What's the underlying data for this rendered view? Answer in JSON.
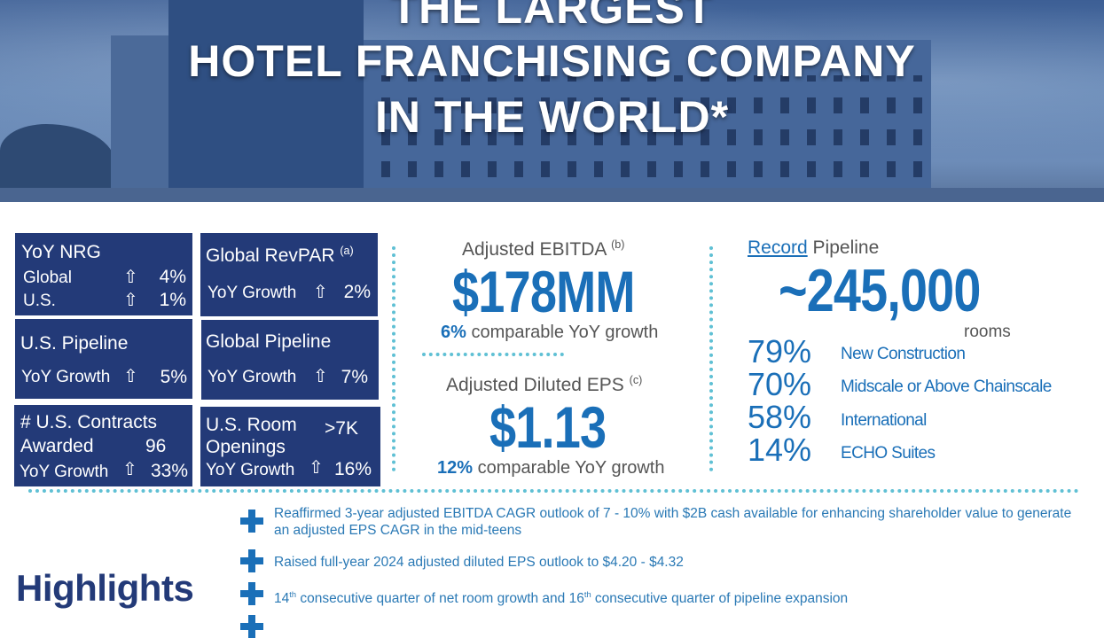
{
  "banner": {
    "lines": [
      "THE LARGEST",
      "HOTEL FRANCHISING COMPANY",
      "IN THE WORLD*"
    ]
  },
  "colors": {
    "navy": "#233a78",
    "blue": "#1a6fb8",
    "dots": "#5fc0d4"
  },
  "boxes": {
    "nrg": {
      "title": "YoY NRG",
      "global_label": "Global",
      "global_value": "4%",
      "us_label": "U.S.",
      "us_value": "1%"
    },
    "revpar": {
      "title": "Global RevPAR",
      "note": "(a)",
      "label": "YoY Growth",
      "value": "2%"
    },
    "us_pipeline": {
      "title": "U.S. Pipeline",
      "label": "YoY Growth",
      "value": "5%"
    },
    "global_pipeline": {
      "title": "Global Pipeline",
      "label": "YoY Growth",
      "value": "7%"
    },
    "contracts": {
      "title1": "# U.S. Contracts",
      "title2": "Awarded",
      "count": "96",
      "label": "YoY Growth",
      "value": "33%"
    },
    "openings": {
      "title1": "U.S. Room",
      "title2": "Openings",
      "count": ">7K",
      "label": "YoY Growth",
      "value": "16%"
    }
  },
  "arrow_icon": "⇧",
  "ebitda": {
    "label": "Adjusted EBITDA",
    "note": "(b)",
    "value": "$178MM",
    "growth_pct": "6%",
    "growth_text": "comparable YoY growth"
  },
  "eps": {
    "label": "Adjusted Diluted EPS",
    "note": "(c)",
    "value": "$1.13",
    "growth_pct": "12%",
    "growth_text": "comparable YoY growth"
  },
  "pipeline": {
    "record": "Record",
    "label": "Pipeline",
    "value": "~245,000",
    "unit": "rooms",
    "items": [
      {
        "pct": "79%",
        "label": "New Construction"
      },
      {
        "pct": "70%",
        "label": "Midscale or Above Chainscale"
      },
      {
        "pct": "58%",
        "label": "International"
      },
      {
        "pct": "14%",
        "label": "ECHO Suites"
      }
    ]
  },
  "highlights": {
    "title": "Highlights",
    "items": [
      "Reaffirmed 3-year adjusted EBITDA CAGR outlook of 7 - 10% with $2B cash available for enhancing shareholder value to generate an adjusted EPS CAGR in the mid-teens",
      "Raised full-year 2024 adjusted diluted EPS outlook to $4.20 - $4.32"
    ],
    "item3": {
      "n1": "14",
      "s1": "th",
      "t1": " consecutive quarter of net room growth and ",
      "n2": "16",
      "s2": "th",
      "t2": " consecutive quarter of pipeline expansion"
    }
  }
}
